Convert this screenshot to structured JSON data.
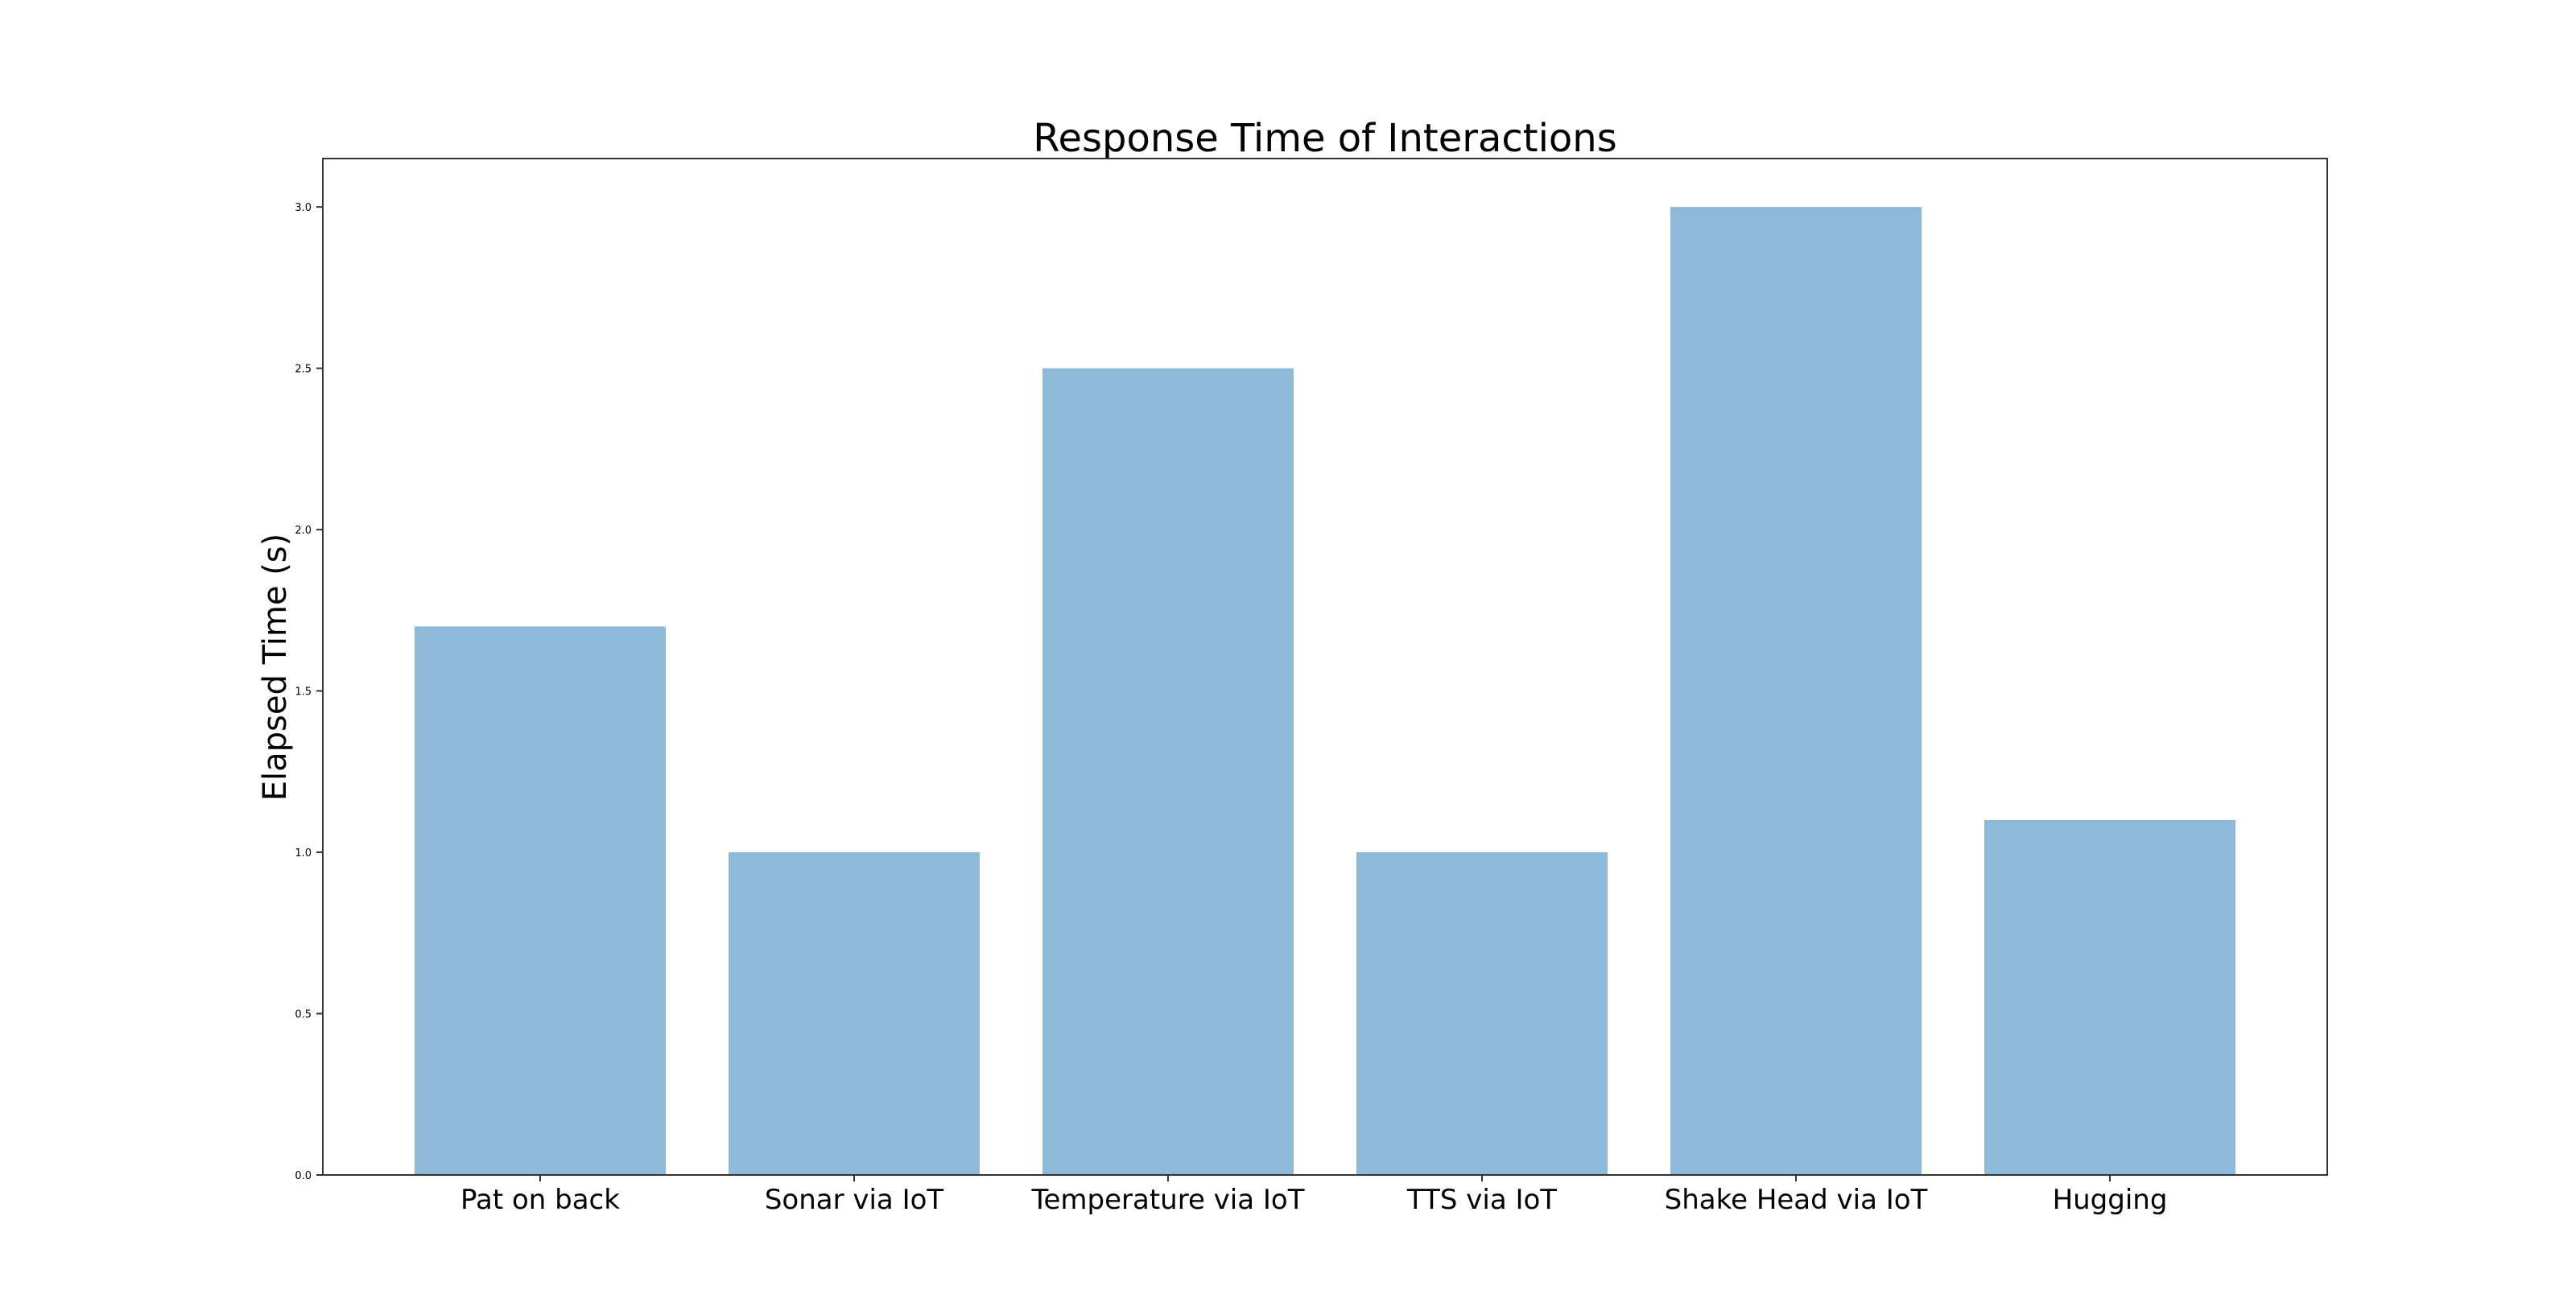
{
  "chart_data": {
    "type": "bar",
    "title": "Response Time of Interactions",
    "xlabel": "",
    "ylabel": "Elapsed Time (s)",
    "categories": [
      "Pat on back",
      "Sonar via IoT",
      "Temperature via IoT",
      "TTS via IoT",
      "Shake Head via IoT",
      "Hugging"
    ],
    "values": [
      1.7,
      1.0,
      2.5,
      1.0,
      3.0,
      1.1
    ],
    "ylim": [
      0,
      3.15
    ],
    "yticks": [
      "0.0",
      "0.5",
      "1.0",
      "1.5",
      "2.0",
      "2.5",
      "3.0"
    ],
    "grid": false,
    "bar_color": "#8fb9d9",
    "axes_color": "#333333"
  }
}
